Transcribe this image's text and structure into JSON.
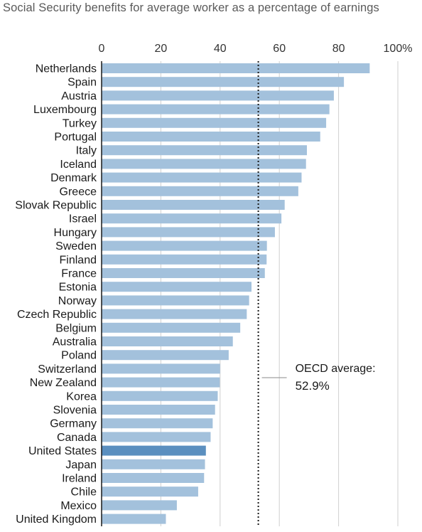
{
  "chart_data": {
    "type": "bar",
    "orientation": "horizontal",
    "title": "Social Security benefits for average worker as a percentage of earnings",
    "xlabel": "",
    "ylabel": "",
    "xlim": [
      0,
      100
    ],
    "xticks": [
      {
        "value": 0,
        "label": "0"
      },
      {
        "value": 20,
        "label": "20"
      },
      {
        "value": 40,
        "label": "40"
      },
      {
        "value": 60,
        "label": "60"
      },
      {
        "value": 80,
        "label": "80"
      },
      {
        "value": 100,
        "label": "100%"
      }
    ],
    "grid": true,
    "legend": "none",
    "categories": [
      "Netherlands",
      "Spain",
      "Austria",
      "Luxembourg",
      "Turkey",
      "Portugal",
      "Italy",
      "Iceland",
      "Denmark",
      "Greece",
      "Slovak Republic",
      "Israel",
      "Hungary",
      "Sweden",
      "Finland",
      "France",
      "Estonia",
      "Norway",
      "Czech Republic",
      "Belgium",
      "Australia",
      "Poland",
      "Switzerland",
      "New Zealand",
      "Korea",
      "Slovenia",
      "Germany",
      "Canada",
      "United States",
      "Japan",
      "Ireland",
      "Chile",
      "Mexico",
      "United Kingdom"
    ],
    "values": [
      90.5,
      81.8,
      78.4,
      76.9,
      75.8,
      73.8,
      69.3,
      69.0,
      67.5,
      66.4,
      61.8,
      60.7,
      58.5,
      55.8,
      55.7,
      55.1,
      50.6,
      49.8,
      49.0,
      46.8,
      44.3,
      42.9,
      40.0,
      39.9,
      39.2,
      38.3,
      37.5,
      36.8,
      35.2,
      34.9,
      34.6,
      32.6,
      25.4,
      21.7
    ],
    "highlight": "United States",
    "colors": {
      "bar": "#a3c1dc",
      "highlight": "#5b8fbf",
      "grid": "#cfcfcf",
      "reference": "#1a1a1a"
    },
    "annotations": [
      {
        "type": "reference-line",
        "value": 52.9,
        "label": "OECD average:",
        "value_label": "52.9%"
      }
    ]
  }
}
